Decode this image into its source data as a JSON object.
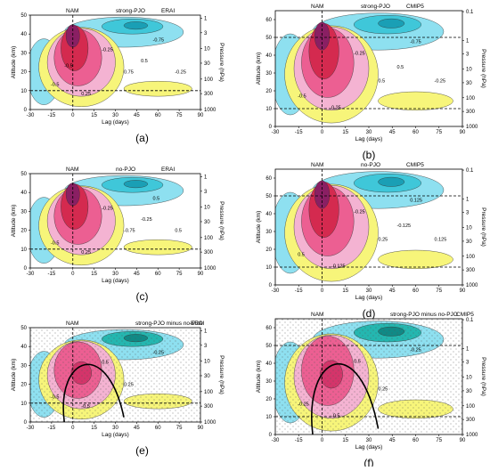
{
  "chart_data": [
    {
      "type": "heatmap",
      "panel_label": "(a)",
      "header": [
        "NAM",
        "strong-PJO",
        "ERAI"
      ],
      "xlabel": "Lag (days)",
      "ylabel": "Altitude (km)",
      "y2label": "Pressure (hPa)",
      "xlim": [
        -30,
        90
      ],
      "ylim": [
        0,
        50
      ],
      "x_ticks": [
        "-30",
        "-15",
        "0",
        "15",
        "30",
        "45",
        "60",
        "75",
        "90"
      ],
      "y_ticks": [
        "0",
        "10",
        "20",
        "30",
        "40",
        "50"
      ],
      "p_ticks": [
        "1",
        "3",
        "10",
        "30",
        "100",
        "300",
        "1000"
      ],
      "contour_labels": [
        "-0.5",
        "-0.25",
        "0.75",
        "-0.75",
        "0.25",
        "0.5",
        "-0.25",
        "-0.5"
      ],
      "significance_stippling": false
    },
    {
      "type": "heatmap",
      "panel_label": "(b)",
      "header": [
        "NAM",
        "strong-PJO",
        "CMIP5"
      ],
      "xlabel": "Lag (days)",
      "ylabel": "Altitude (km)",
      "y2label": "Pressure (hPa)",
      "xlim": [
        -30,
        90
      ],
      "ylim": [
        0,
        65
      ],
      "x_ticks": [
        "-30",
        "-15",
        "0",
        "15",
        "30",
        "45",
        "60",
        "75",
        "90"
      ],
      "y_ticks": [
        "0",
        "10",
        "20",
        "30",
        "40",
        "50",
        "60"
      ],
      "p_ticks": [
        "0.1",
        "1",
        "3",
        "10",
        "30",
        "100",
        "300",
        "1000"
      ],
      "contour_labels": [
        "-0.5",
        "-0.25",
        "0.5",
        "-0.75",
        "0.25",
        "0.5",
        "-0.25"
      ],
      "significance_stippling": false
    },
    {
      "type": "heatmap",
      "panel_label": "(c)",
      "header": [
        "NAM",
        "no-PJO",
        "ERAI"
      ],
      "xlabel": "Lag (days)",
      "ylabel": "Altitude (km)",
      "y2label": "Pressure (hPa)",
      "xlim": [
        -30,
        90
      ],
      "ylim": [
        0,
        50
      ],
      "x_ticks": [
        "-30",
        "-15",
        "0",
        "15",
        "30",
        "45",
        "60",
        "75",
        "90"
      ],
      "y_ticks": [
        "0",
        "10",
        "20",
        "30",
        "40",
        "50"
      ],
      "p_ticks": [
        "1",
        "3",
        "10",
        "30",
        "100",
        "300",
        "1000"
      ],
      "contour_labels": [
        "-0.5",
        "-0.25",
        "-0.75",
        "0.5",
        "0.25",
        "-0.25",
        "0.5"
      ],
      "significance_stippling": false
    },
    {
      "type": "heatmap",
      "panel_label": "(d)",
      "header": [
        "NAM",
        "no-PJO",
        "CMIP5"
      ],
      "xlabel": "Lag (days)",
      "ylabel": "Altitude (km)",
      "y2label": "Pressure (hPa)",
      "xlim": [
        -30,
        90
      ],
      "ylim": [
        0,
        65
      ],
      "x_ticks": [
        "-30",
        "-15",
        "0",
        "15",
        "30",
        "45",
        "60",
        "75",
        "90"
      ],
      "y_ticks": [
        "0",
        "10",
        "20",
        "30",
        "40",
        "50",
        "60"
      ],
      "p_ticks": [
        "0.1",
        "1",
        "3",
        "10",
        "30",
        "100",
        "300",
        "1000"
      ],
      "contour_labels": [
        "0.5",
        "-0.25",
        "0.25",
        "0.125",
        "-0.125",
        "-0.125",
        "0.125"
      ],
      "significance_stippling": false
    },
    {
      "type": "heatmap",
      "panel_label": "(e)",
      "header": [
        "NAM",
        "strong-PJO minus no-PJO",
        "ERAI"
      ],
      "xlabel": "Lag (days)",
      "ylabel": "Altitude (km)",
      "y2label": "Pressure (hPa)",
      "xlim": [
        -30,
        90
      ],
      "ylim": [
        0,
        50
      ],
      "x_ticks": [
        "-30",
        "-15",
        "0",
        "15",
        "30",
        "45",
        "60",
        "75",
        "90"
      ],
      "y_ticks": [
        "0",
        "10",
        "20",
        "30",
        "40",
        "50"
      ],
      "p_ticks": [
        "1",
        "3",
        "10",
        "30",
        "100",
        "300",
        "1000"
      ],
      "contour_labels": [
        "-0.5",
        "0.5",
        "0.25",
        "-0.25",
        "-0.5"
      ],
      "significance_stippling": true
    },
    {
      "type": "heatmap",
      "panel_label": "(f)",
      "header": [
        "NAM",
        "strong-PJO minus no-PJO",
        "CMIP5"
      ],
      "xlabel": "Lag (days)",
      "ylabel": "Altitude (km)",
      "y2label": "Pressure (hPa)",
      "xlim": [
        -30,
        90
      ],
      "ylim": [
        0,
        65
      ],
      "x_ticks": [
        "-30",
        "-15",
        "0",
        "15",
        "30",
        "45",
        "60",
        "75",
        "90"
      ],
      "y_ticks": [
        "0",
        "10",
        "20",
        "30",
        "40",
        "50",
        "60"
      ],
      "p_ticks": [
        "0.1",
        "1",
        "3",
        "10",
        "30",
        "100",
        "300",
        "1000"
      ],
      "contour_labels": [
        "-0.25",
        "0.5",
        "0.25",
        "-0.25",
        "-0.5"
      ],
      "significance_stippling": true
    }
  ]
}
